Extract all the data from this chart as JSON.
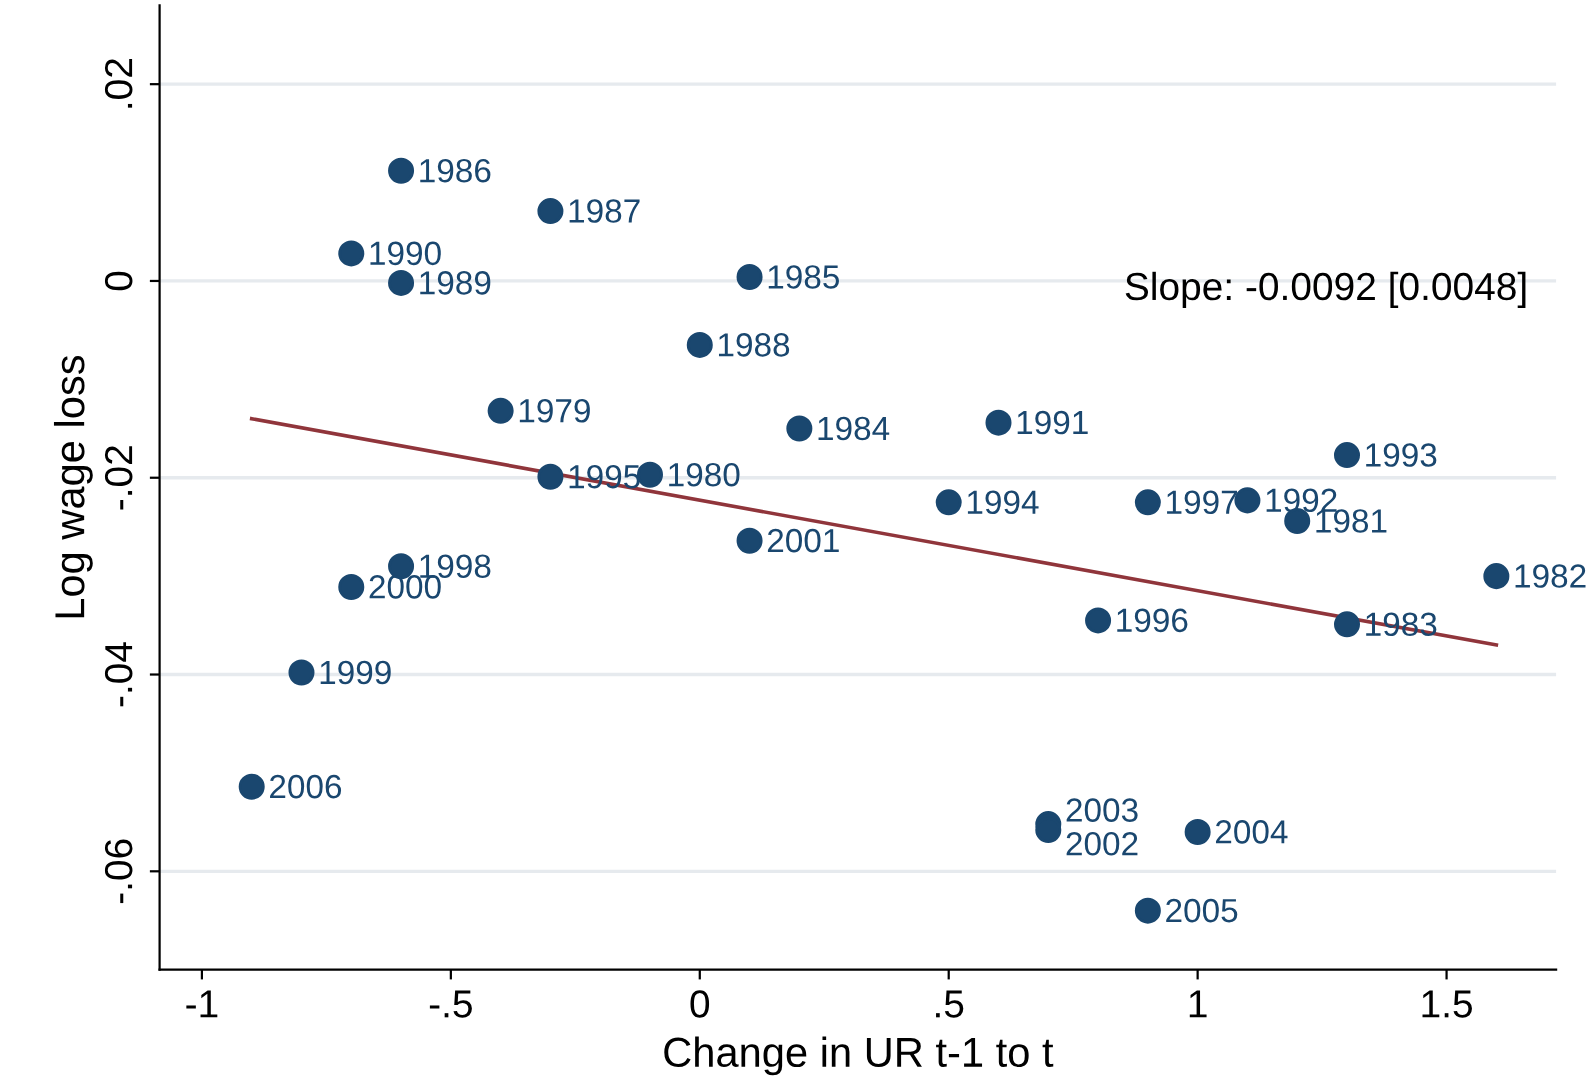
{
  "chart_data": {
    "type": "scatter",
    "xlabel": "Change in UR t-1 to t",
    "ylabel": "Log wage loss",
    "xlim": [
      -1.085,
      1.72
    ],
    "ylim": [
      -0.07,
      0.028
    ],
    "xticks": [
      {
        "value": -1,
        "label": "-1"
      },
      {
        "value": -0.5,
        "label": "-.5"
      },
      {
        "value": 0,
        "label": "0"
      },
      {
        "value": 0.5,
        "label": ".5"
      },
      {
        "value": 1,
        "label": "1"
      },
      {
        "value": 1.5,
        "label": "1.5"
      }
    ],
    "yticks": [
      {
        "value": -0.06,
        "label": "-.06"
      },
      {
        "value": -0.04,
        "label": "-.04"
      },
      {
        "value": -0.02,
        "label": "-.02"
      },
      {
        "value": 0,
        "label": "0"
      },
      {
        "value": 0.02,
        "label": ".02"
      }
    ],
    "grid": "y",
    "marker": "circle",
    "series": [
      {
        "color": "#1a476f",
        "x": [
          -0.6,
          -0.3,
          -0.7,
          -0.6,
          0.1,
          0.0,
          -0.4,
          0.2,
          0.6,
          1.3,
          -0.3,
          -0.1,
          0.5,
          0.9,
          1.1,
          1.2,
          0.1,
          1.6,
          -0.6,
          -0.7,
          0.8,
          1.3,
          -0.8,
          -0.9,
          0.7,
          0.7,
          1.0,
          0.9
        ],
        "values": [
          0.0112,
          0.0071,
          0.0028,
          -0.0002,
          0.0004,
          -0.0065,
          -0.0132,
          -0.015,
          -0.0144,
          -0.0177,
          -0.0199,
          -0.0197,
          -0.0225,
          -0.0225,
          -0.0223,
          -0.0244,
          -0.0264,
          -0.03,
          -0.029,
          -0.0311,
          -0.0345,
          -0.0349,
          -0.0398,
          -0.0514,
          -0.0552,
          -0.0558,
          -0.056,
          -0.064
        ]
      },
      {
        "type": "line",
        "marker": "none",
        "color": "#90353b",
        "x": [
          -0.9,
          1.6
        ],
        "values": [
          -0.014,
          -0.037
        ]
      }
    ],
    "annotations": [
      {
        "text": "1986",
        "x": -0.6,
        "y": 0.0112
      },
      {
        "text": "1987",
        "x": -0.3,
        "y": 0.0071
      },
      {
        "text": "1990",
        "x": -0.7,
        "y": 0.0028
      },
      {
        "text": "1989",
        "x": -0.6,
        "y": -0.0002
      },
      {
        "text": "1985",
        "x": 0.1,
        "y": 0.0004
      },
      {
        "text": "1988",
        "x": 0.0,
        "y": -0.0065
      },
      {
        "text": "1979",
        "x": -0.4,
        "y": -0.0132
      },
      {
        "text": "1984",
        "x": 0.2,
        "y": -0.015
      },
      {
        "text": "1991",
        "x": 0.6,
        "y": -0.0144
      },
      {
        "text": "1993",
        "x": 1.3,
        "y": -0.0177
      },
      {
        "text": "1995",
        "x": -0.3,
        "y": -0.0199
      },
      {
        "text": "1980",
        "x": -0.1,
        "y": -0.0197
      },
      {
        "text": "1994",
        "x": 0.5,
        "y": -0.0225
      },
      {
        "text": "1997",
        "x": 0.9,
        "y": -0.0225
      },
      {
        "text": "1992",
        "x": 1.1,
        "y": -0.0223
      },
      {
        "text": "1981",
        "x": 1.2,
        "y": -0.0244
      },
      {
        "text": "2001",
        "x": 0.1,
        "y": -0.0264
      },
      {
        "text": "1982",
        "x": 1.6,
        "y": -0.03
      },
      {
        "text": "1998",
        "x": -0.6,
        "y": -0.029
      },
      {
        "text": "2000",
        "x": -0.7,
        "y": -0.0311
      },
      {
        "text": "1996",
        "x": 0.8,
        "y": -0.0345
      },
      {
        "text": "1983",
        "x": 1.3,
        "y": -0.0349
      },
      {
        "text": "1999",
        "x": -0.8,
        "y": -0.0398
      },
      {
        "text": "2006",
        "x": -0.9,
        "y": -0.0514
      },
      {
        "text": "2003",
        "x": 0.7,
        "y": -0.0552
      },
      {
        "text": "2002",
        "x": 0.7,
        "y": -0.0558
      },
      {
        "text": "2004",
        "x": 1.0,
        "y": -0.056
      },
      {
        "text": "2005",
        "x": 0.9,
        "y": -0.064
      },
      "Slope: -0.0092 [0.0048]"
    ]
  }
}
